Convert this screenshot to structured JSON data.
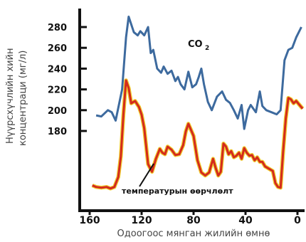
{
  "chart_data": {
    "type": "line",
    "xlabel": "Одоогоос мянган жилийн өмнө",
    "ylabel_lines": [
      "Нүүрсхүчлийн хийн",
      "концентраци (мг/л)"
    ],
    "x_ticks": [
      160,
      120,
      80,
      40,
      0
    ],
    "y_ticks": [
      180,
      200,
      220,
      240,
      260,
      280
    ],
    "xlim": [
      165,
      -5
    ],
    "ylim": [
      180,
      290
    ],
    "grid": false,
    "annotations": {
      "co2_main": "CO",
      "co2_sub": "2",
      "temperature": "температурын өөрчлөлт"
    },
    "colors": {
      "co2": "#3d6a9e",
      "temperature": "#d42a1c",
      "temperature_glow": "#f0cc30",
      "axis": "#111111"
    },
    "series": [
      {
        "key": "co2",
        "values": [
          [
            155,
            195
          ],
          [
            151,
            194
          ],
          [
            146,
            200
          ],
          [
            143,
            198
          ],
          [
            140,
            190
          ],
          [
            135,
            220
          ],
          [
            132,
            270
          ],
          [
            130,
            290
          ],
          [
            126,
            275
          ],
          [
            123,
            272
          ],
          [
            121,
            276
          ],
          [
            118,
            272
          ],
          [
            115,
            280
          ],
          [
            113,
            255
          ],
          [
            111,
            258
          ],
          [
            108,
            240
          ],
          [
            105,
            236
          ],
          [
            103,
            242
          ],
          [
            100,
            235
          ],
          [
            97,
            238
          ],
          [
            94,
            228
          ],
          [
            92,
            232
          ],
          [
            90,
            225
          ],
          [
            87,
            220
          ],
          [
            84,
            237
          ],
          [
            81,
            222
          ],
          [
            78,
            225
          ],
          [
            76,
            232
          ],
          [
            74,
            240
          ],
          [
            72,
            225
          ],
          [
            69,
            208
          ],
          [
            66,
            200
          ],
          [
            62,
            213
          ],
          [
            58,
            218
          ],
          [
            55,
            210
          ],
          [
            52,
            207
          ],
          [
            49,
            200
          ],
          [
            46,
            192
          ],
          [
            43,
            205
          ],
          [
            41,
            182
          ],
          [
            38,
            200
          ],
          [
            36,
            205
          ],
          [
            32,
            198
          ],
          [
            29,
            218
          ],
          [
            27,
            204
          ],
          [
            24,
            200
          ],
          [
            20,
            198
          ],
          [
            16,
            196
          ],
          [
            13,
            200
          ],
          [
            10,
            248
          ],
          [
            7,
            258
          ],
          [
            4,
            260
          ],
          [
            1,
            270
          ],
          [
            -3,
            280
          ]
        ]
      },
      {
        "key": "temperature",
        "values": [
          [
            158,
            7
          ],
          [
            155,
            5
          ],
          [
            151,
            4
          ],
          [
            147,
            5
          ],
          [
            144,
            3
          ],
          [
            141,
            5
          ],
          [
            138,
            18
          ],
          [
            136,
            45
          ],
          [
            134,
            100
          ],
          [
            132,
            145
          ],
          [
            130,
            135
          ],
          [
            128,
            115
          ],
          [
            125,
            118
          ],
          [
            122,
            110
          ],
          [
            120,
            100
          ],
          [
            118,
            82
          ],
          [
            115,
            35
          ],
          [
            112,
            25
          ],
          [
            109,
            42
          ],
          [
            106,
            55
          ],
          [
            104,
            50
          ],
          [
            102,
            48
          ],
          [
            100,
            58
          ],
          [
            97,
            54
          ],
          [
            94,
            47
          ],
          [
            91,
            48
          ],
          [
            88,
            60
          ],
          [
            86,
            78
          ],
          [
            84,
            88
          ],
          [
            82,
            80
          ],
          [
            80,
            72
          ],
          [
            77,
            40
          ],
          [
            74,
            24
          ],
          [
            71,
            20
          ],
          [
            68,
            24
          ],
          [
            65,
            42
          ],
          [
            63,
            30
          ],
          [
            61,
            20
          ],
          [
            59,
            25
          ],
          [
            57,
            62
          ],
          [
            55,
            58
          ],
          [
            53,
            48
          ],
          [
            51,
            52
          ],
          [
            49,
            44
          ],
          [
            47,
            46
          ],
          [
            45,
            50
          ],
          [
            43,
            42
          ],
          [
            41,
            56
          ],
          [
            39,
            50
          ],
          [
            37,
            46
          ],
          [
            35,
            47
          ],
          [
            33,
            40
          ],
          [
            31,
            44
          ],
          [
            29,
            38
          ],
          [
            27,
            38
          ],
          [
            25,
            32
          ],
          [
            23,
            30
          ],
          [
            21,
            28
          ],
          [
            19,
            26
          ],
          [
            17,
            10
          ],
          [
            15,
            5
          ],
          [
            13,
            4
          ],
          [
            11,
            52
          ],
          [
            9,
            95
          ],
          [
            7,
            122
          ],
          [
            5,
            120
          ],
          [
            3,
            115
          ],
          [
            1,
            118
          ],
          [
            -2,
            112
          ],
          [
            -4,
            108
          ]
        ]
      }
    ]
  }
}
